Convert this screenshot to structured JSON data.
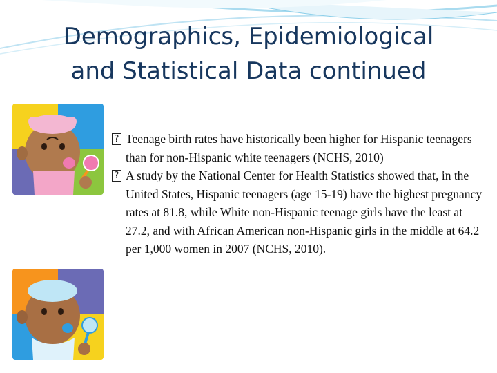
{
  "title": {
    "line1": "Demographics, Epidemiological",
    "line2": "and Statistical Data continued"
  },
  "bullets": [
    {
      "marker": "?",
      "text": "Teenage birth rates have historically been higher for Hispanic teenagers than for non-Hispanic white teenagers (NCHS, 2010)"
    },
    {
      "marker": "?",
      "text": "A study by the National Center for Health Statistics showed that, in the United States, Hispanic teenagers (age 15-19) have the highest pregnancy rates at 81.8, while White non-Hispanic teenage girls have the least at 27.2, and with African American non-Hispanic girls in the middle at 64.2 per 1,000 women in 2007 (NCHS, 2010)."
    }
  ],
  "images": {
    "top": "baby-girl-with-rattle-icon",
    "bottom": "baby-boy-with-rattle-icon"
  },
  "colors": {
    "title": "#17375e",
    "accent_swoosh": "#7ec8e3",
    "tile_yellow": "#f6d21e",
    "tile_blue": "#2f9de0",
    "tile_green": "#8cc63e",
    "tile_orange": "#f7941d",
    "tile_purple": "#6b6bb5"
  }
}
